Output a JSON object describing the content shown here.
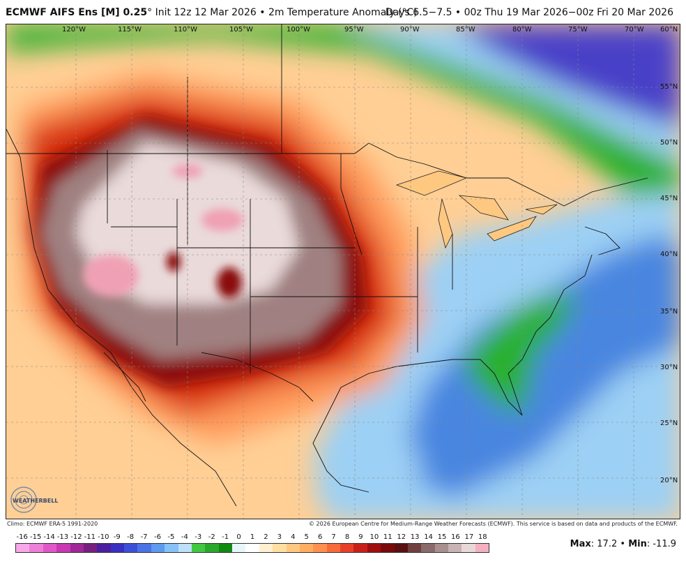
{
  "header": {
    "model": "ECMWF AIFS Ens [M] 0.25",
    "degree": "°",
    "init_text": "Init 12z 12 Mar 2026",
    "separator": "•",
    "field": "2m Temperature Anomaly (°C)",
    "days": "Days 6.5−7.5 • 00z Thu 19 Mar 2026−00z Fri 20 Mar 2026"
  },
  "longitudes": [
    "120°W",
    "115°W",
    "110°W",
    "105°W",
    "100°W",
    "95°W",
    "90°W",
    "85°W",
    "80°W",
    "75°W",
    "70°W",
    "60°N"
  ],
  "latitudes": [
    "55°N",
    "50°N",
    "45°N",
    "40°N",
    "35°N",
    "30°N",
    "25°N",
    "20°N"
  ],
  "footer": {
    "climo": "Climo: ECMWF ERA-5 1991-2020",
    "copyright": "© 2026 European Centre for Medium-Range Weather Forecasts (ECMWF). This service is based on data and products of the ECMWF."
  },
  "colorbar": {
    "labels": [
      "-16",
      "-15",
      "-14",
      "-13",
      "-12",
      "-11",
      "-10",
      "-9",
      "-8",
      "-7",
      "-6",
      "-5",
      "-4",
      "-3",
      "-2",
      "-1",
      "0",
      "1",
      "2",
      "3",
      "4",
      "5",
      "6",
      "7",
      "8",
      "9",
      "10",
      "11",
      "12",
      "13",
      "14",
      "15",
      "16",
      "17",
      "18"
    ],
    "colors": [
      "#f7a8e8",
      "#ee7fd8",
      "#e058c8",
      "#c838b4",
      "#a02898",
      "#782080",
      "#4b1fa0",
      "#3a2fc0",
      "#3d4fd8",
      "#4a74e6",
      "#5e9af0",
      "#86c1f7",
      "#bde0f8",
      "#40c840",
      "#2aa82a",
      "#108a10",
      "#e8f6fc",
      "#ffffff",
      "#fff0d0",
      "#ffe0a0",
      "#ffc880",
      "#ffae60",
      "#ff9050",
      "#f86a3a",
      "#e84028",
      "#c82018",
      "#a00e0e",
      "#7a0a0a",
      "#5a1010",
      "#704040",
      "#8a6a6a",
      "#a89090",
      "#c8b4b4",
      "#e8d8d8",
      "#f5b0c0"
    ]
  },
  "maxmin": {
    "max_label": "Max",
    "max_value": ": 17.2",
    "sep": "•",
    "min_label": "Min",
    "min_value": ": -11.9"
  },
  "logo": {
    "text": "WEATHERBELL"
  },
  "colors": {
    "cold_purple": "#4a3fc8",
    "cold_blue": "#4a86e0",
    "cool_lightblue": "#9cd0f4",
    "green": "#2ab02a",
    "near_zero": "#ffffff",
    "warm_peach": "#ffcf95",
    "warm_orange": "#ff9a5a",
    "hot_red": "#d8300f",
    "very_hot": "#8a1010",
    "extreme": "#a08080",
    "extreme_light": "#eadada",
    "extreme_pink": "#f0a0b4"
  }
}
